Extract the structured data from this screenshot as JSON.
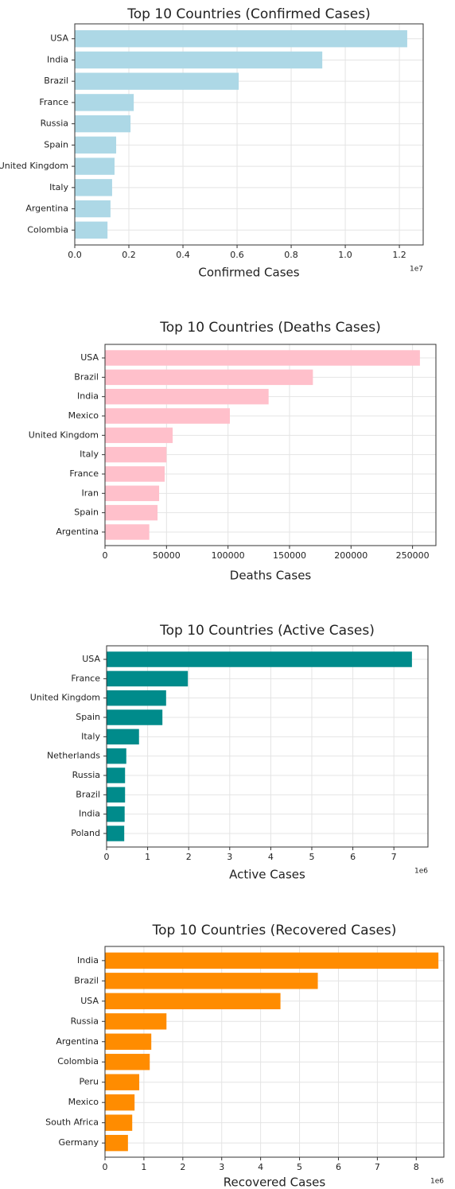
{
  "chart_data": [
    {
      "type": "bar",
      "title": "Top 10 Countries (Confirmed Cases)",
      "xlabel": "Confirmed Cases",
      "offset_text": "1e7",
      "color": "#add8e6",
      "grid": true,
      "categories": [
        "USA",
        "India",
        "Brazil",
        "France",
        "Russia",
        "Spain",
        "United Kingdom",
        "Italy",
        "Argentina",
        "Colombia"
      ],
      "values": [
        12290000,
        9150000,
        6060000,
        2180000,
        2060000,
        1530000,
        1470000,
        1380000,
        1320000,
        1210000
      ],
      "xlim": [
        0,
        12880000
      ],
      "xticks": [
        {
          "value": 0,
          "label": "0.0"
        },
        {
          "value": 2000000,
          "label": "0.2"
        },
        {
          "value": 4000000,
          "label": "0.4"
        },
        {
          "value": 6000000,
          "label": "0.6"
        },
        {
          "value": 8000000,
          "label": "0.8"
        },
        {
          "value": 10000000,
          "label": "1.0"
        },
        {
          "value": 12000000,
          "label": "1.2"
        }
      ]
    },
    {
      "type": "bar",
      "title": "Top 10 Countries (Deaths Cases)",
      "xlabel": "Deaths Cases",
      "color": "#ffc0cb",
      "grid": true,
      "categories": [
        "USA",
        "Brazil",
        "India",
        "Mexico",
        "United Kingdom",
        "Italy",
        "France",
        "Iran",
        "Spain",
        "Argentina"
      ],
      "values": [
        256000,
        169000,
        133000,
        101500,
        55000,
        50000,
        48500,
        44000,
        42700,
        36000
      ],
      "xlim": [
        0,
        269000
      ],
      "xticks": [
        0,
        50000,
        100000,
        150000,
        200000,
        250000
      ]
    },
    {
      "type": "bar",
      "title": "Top 10 Countries (Active Cases)",
      "xlabel": "Active Cases",
      "offset_text": "1e6",
      "color": "#008b8b",
      "grid": true,
      "categories": [
        "USA",
        "France",
        "United Kingdom",
        "Spain",
        "Italy",
        "Netherlands",
        "Russia",
        "Brazil",
        "India",
        "Poland"
      ],
      "values": [
        7440000,
        1980000,
        1450000,
        1360000,
        790000,
        480000,
        450000,
        450000,
        440000,
        430000
      ],
      "xlim": [
        0,
        7830000
      ],
      "xticks": [
        0,
        {
          "value": 1000000,
          "label": "1"
        },
        {
          "value": 2000000,
          "label": "2"
        },
        {
          "value": 3000000,
          "label": "3"
        },
        {
          "value": 4000000,
          "label": "4"
        },
        {
          "value": 5000000,
          "label": "5"
        },
        {
          "value": 6000000,
          "label": "6"
        },
        {
          "value": 7000000,
          "label": "7"
        }
      ]
    },
    {
      "type": "bar",
      "title": "Top 10 Countries (Recovered Cases)",
      "xlabel": "Recovered Cases",
      "offset_text": "1e6",
      "color": "#ff8c00",
      "grid": true,
      "categories": [
        "India",
        "Brazil",
        "USA",
        "Russia",
        "Argentina",
        "Colombia",
        "Peru",
        "Mexico",
        "South Africa",
        "Germany"
      ],
      "values": [
        8570000,
        5470000,
        4510000,
        1580000,
        1190000,
        1150000,
        880000,
        760000,
        700000,
        590000
      ],
      "xlim": [
        0,
        8710000
      ],
      "xticks": [
        0,
        {
          "value": 1000000,
          "label": "1"
        },
        {
          "value": 2000000,
          "label": "2"
        },
        {
          "value": 3000000,
          "label": "3"
        },
        {
          "value": 4000000,
          "label": "4"
        },
        {
          "value": 5000000,
          "label": "5"
        },
        {
          "value": 6000000,
          "label": "6"
        },
        {
          "value": 7000000,
          "label": "7"
        },
        {
          "value": 8000000,
          "label": "8"
        }
      ]
    }
  ]
}
